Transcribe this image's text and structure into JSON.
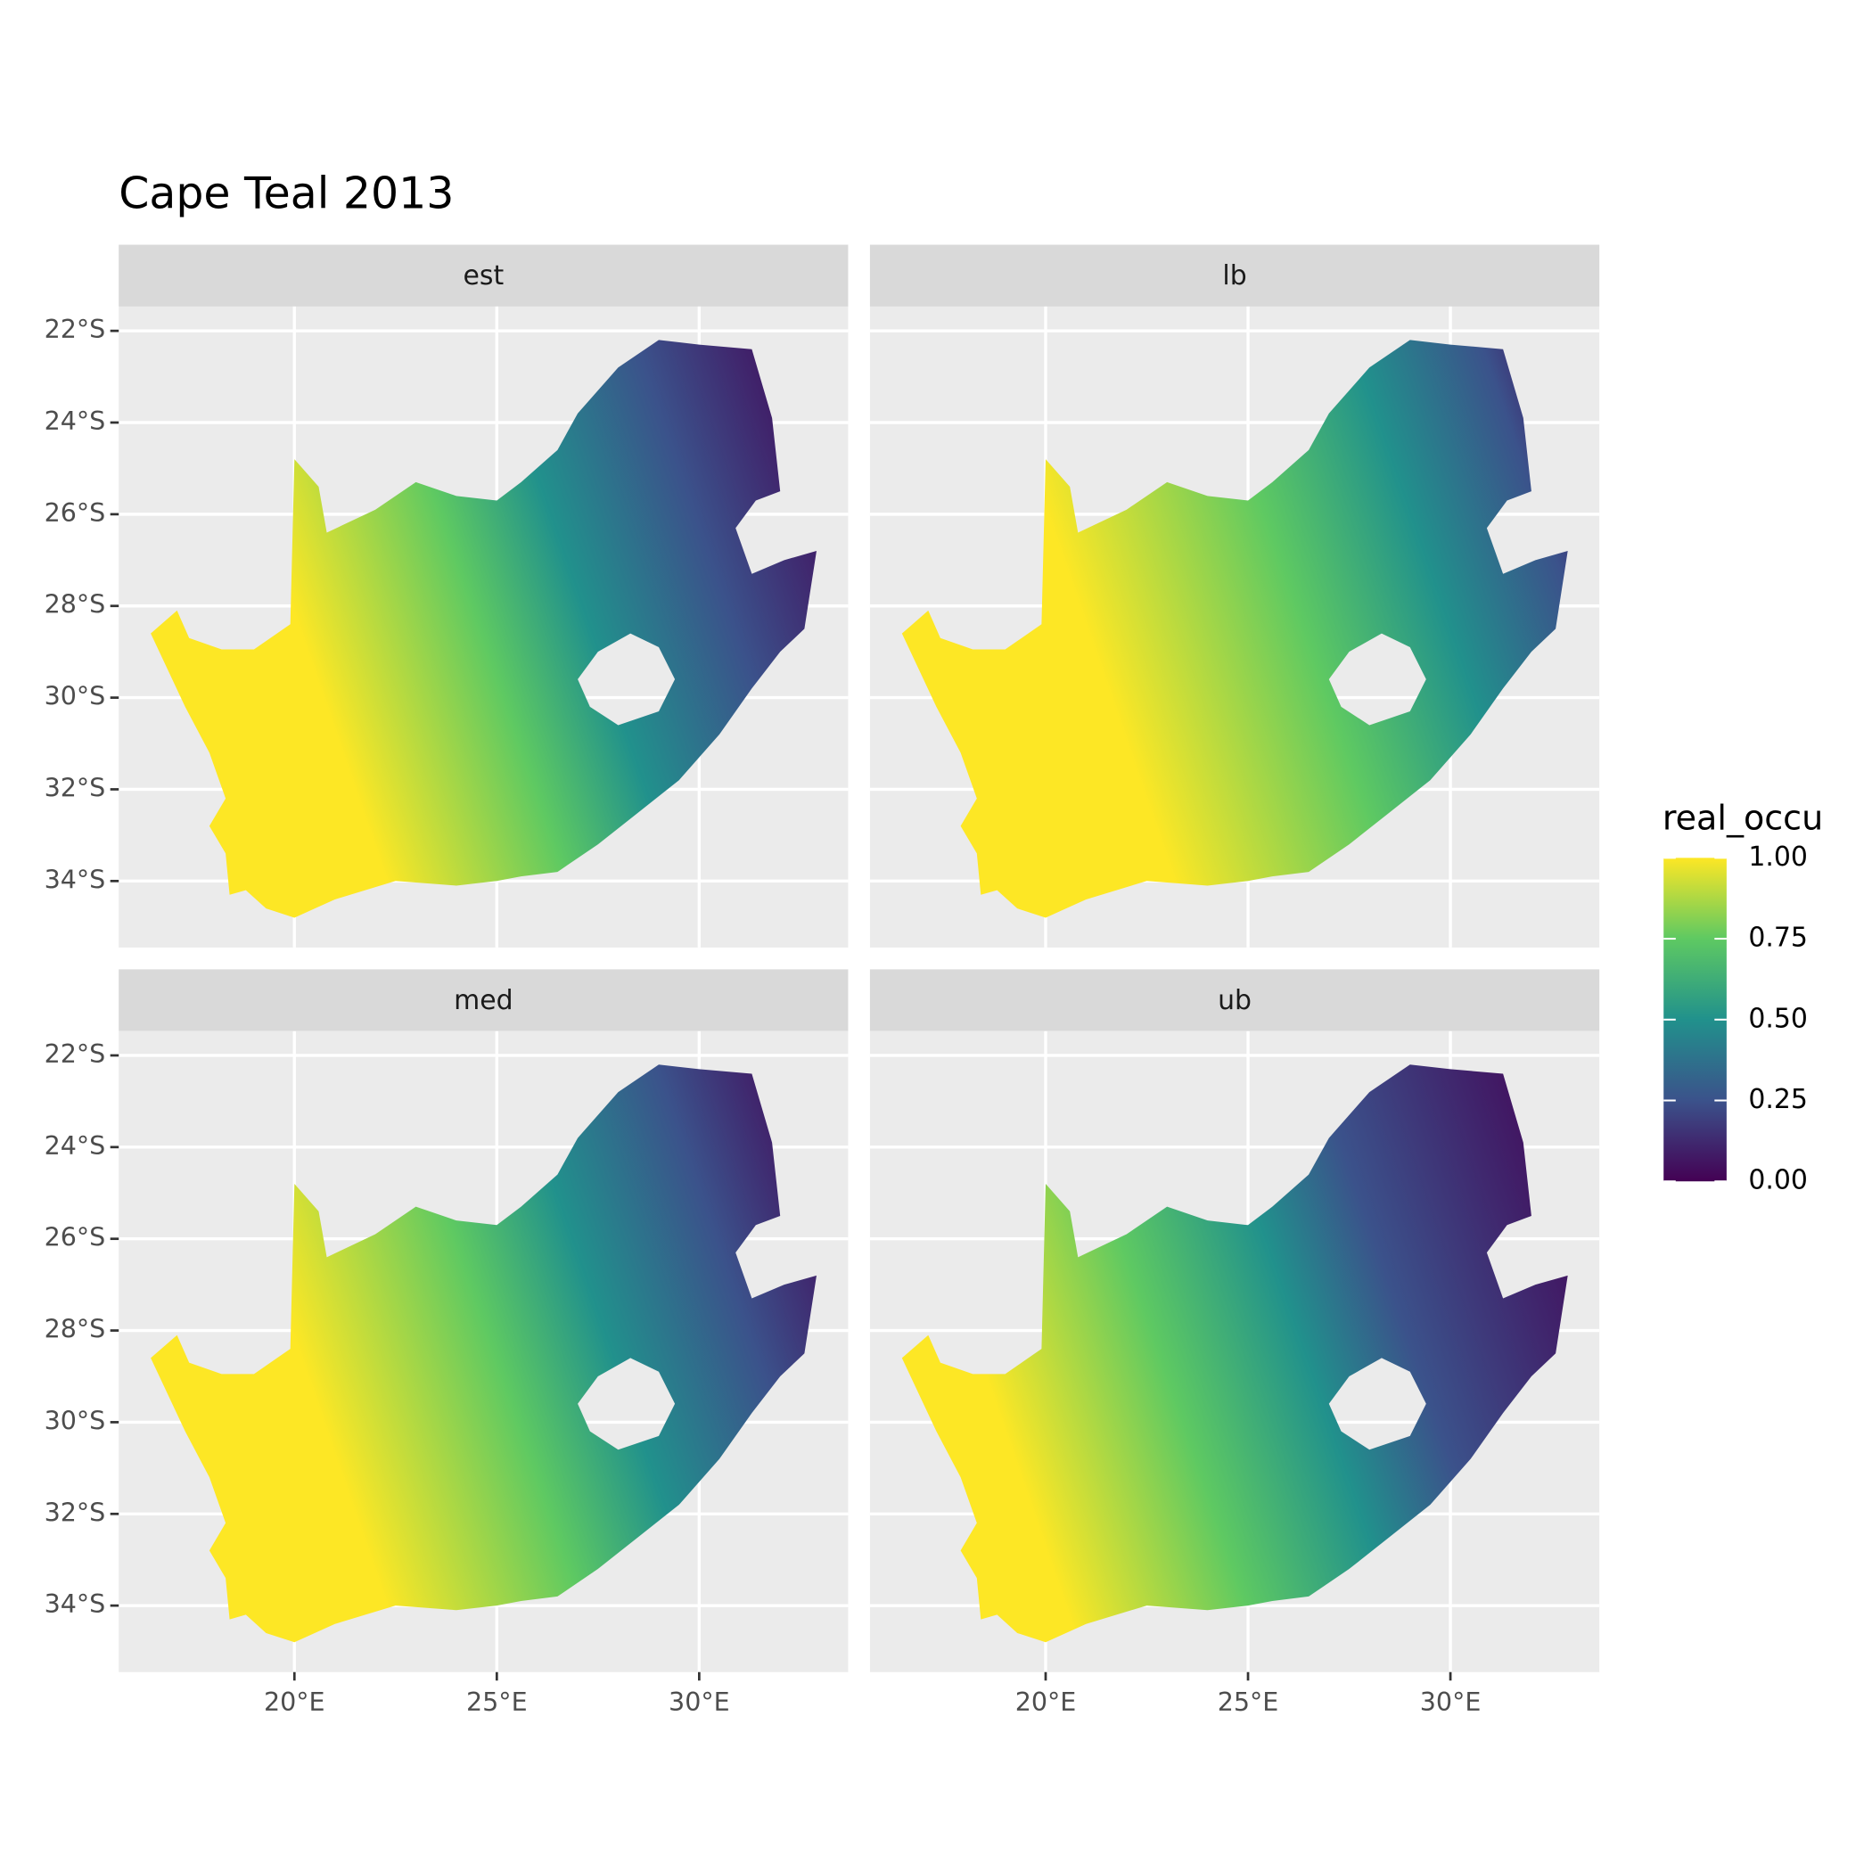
{
  "chart_data": {
    "type": "map",
    "title": "Cape Teal 2013",
    "facets": [
      "est",
      "lb",
      "med",
      "ub"
    ],
    "xlim": [
      15.66,
      33.68
    ],
    "ylim": [
      -35.45,
      -21.47
    ],
    "xticks": [
      {
        "value": 20,
        "label": "20°E"
      },
      {
        "value": 25,
        "label": "25°E"
      },
      {
        "value": 30,
        "label": "30°E"
      }
    ],
    "yticks": [
      {
        "value": -22,
        "label": "22°S"
      },
      {
        "value": -24,
        "label": "24°S"
      },
      {
        "value": -26,
        "label": "26°S"
      },
      {
        "value": -28,
        "label": "28°S"
      },
      {
        "value": -30,
        "label": "30°S"
      },
      {
        "value": -32,
        "label": "32°S"
      },
      {
        "value": -34,
        "label": "34°S"
      }
    ],
    "grid": true,
    "legend": {
      "title": "real_occu",
      "position": "right",
      "lim": [
        0,
        1
      ],
      "ticks": [
        {
          "value": 0,
          "label": "0.00"
        },
        {
          "value": 0.25,
          "label": "0.25"
        },
        {
          "value": 0.5,
          "label": "0.50"
        },
        {
          "value": 0.75,
          "label": "0.75"
        },
        {
          "value": 1,
          "label": "1.00"
        }
      ],
      "colors": [
        "#440154",
        "#3b528b",
        "#21918c",
        "#5ec962",
        "#fde725"
      ]
    }
  }
}
